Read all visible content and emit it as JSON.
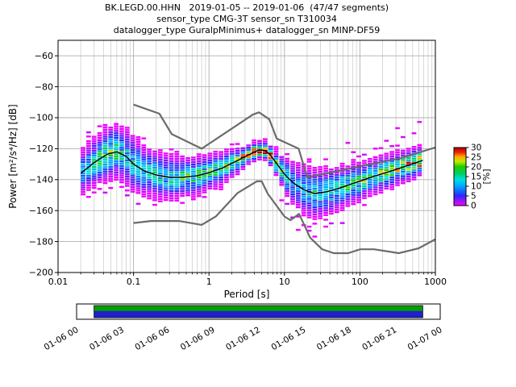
{
  "chart_data": {
    "type": "heatmap",
    "title": "BK.LEGD.00.HHN   2019-01-05 -- 2019-01-06  (47/47 segments)",
    "subtitles": [
      "sensor_type CMG-3T sensor_sn T310034",
      "datalogger_type GuralpMinimus+ datalogger_sn MINP-DF59"
    ],
    "xlabel": "Period [s]",
    "ylabel": "Power [m²/s⁴/Hz] [dB]",
    "x_scale": "log",
    "xlim": [
      0.01,
      1000
    ],
    "ylim": [
      -200,
      -50
    ],
    "grid": true,
    "xtick_values": [
      0.01,
      0.1,
      1,
      10,
      100,
      1000
    ],
    "xtick_labels": [
      "0.01",
      "0.1",
      "1",
      "10",
      "100",
      "1000"
    ],
    "ytick_values": [
      -60,
      -80,
      -100,
      -120,
      -140,
      -160,
      -180,
      -200
    ],
    "ytick_labels": [
      "−60",
      "−80",
      "−100",
      "−120",
      "−140",
      "−160",
      "−180",
      "−200"
    ],
    "colorbar": {
      "label": "[%]",
      "vmin": 0,
      "vmax": 30,
      "tick_values": [
        0,
        5,
        10,
        15,
        20,
        25,
        30
      ],
      "tick_labels": [
        "0",
        "5",
        "10",
        "15",
        "20",
        "25",
        "30"
      ],
      "stops": [
        [
          0.0,
          "#ff00ff"
        ],
        [
          0.17,
          "#2a2aff"
        ],
        [
          0.34,
          "#00aaff"
        ],
        [
          0.45,
          "#00e0e0"
        ],
        [
          0.55,
          "#00d060"
        ],
        [
          0.67,
          "#22cc00"
        ],
        [
          0.76,
          "#bbee00"
        ],
        [
          0.84,
          "#ffaa00"
        ],
        [
          0.92,
          "#ee2200"
        ],
        [
          1.0,
          "#aa0000"
        ]
      ]
    },
    "noise_models": {
      "color": "#6b6b6b",
      "nhnm": [
        [
          0.1,
          -91.5
        ],
        [
          0.22,
          -97.4
        ],
        [
          0.32,
          -110.5
        ],
        [
          0.8,
          -120.0
        ],
        [
          3.8,
          -98.0
        ],
        [
          4.6,
          -96.5
        ],
        [
          6.3,
          -101.0
        ],
        [
          7.9,
          -113.5
        ],
        [
          15.4,
          -120.0
        ],
        [
          20.0,
          -138.5
        ],
        [
          354.8,
          -126.0
        ],
        [
          1000,
          -119.2
        ]
      ],
      "nlnm": [
        [
          0.1,
          -168.0
        ],
        [
          0.17,
          -166.7
        ],
        [
          0.4,
          -166.7
        ],
        [
          0.8,
          -169.2
        ],
        [
          1.24,
          -163.7
        ],
        [
          2.4,
          -148.6
        ],
        [
          4.3,
          -141.1
        ],
        [
          5.0,
          -141.1
        ],
        [
          6.0,
          -149.0
        ],
        [
          10.0,
          -163.8
        ],
        [
          12.0,
          -166.2
        ],
        [
          15.6,
          -162.1
        ],
        [
          21.9,
          -177.5
        ],
        [
          31.6,
          -185.0
        ],
        [
          45.0,
          -187.5
        ],
        [
          70.0,
          -187.5
        ],
        [
          101.0,
          -185.0
        ],
        [
          154.0,
          -185.0
        ],
        [
          328.0,
          -187.5
        ],
        [
          600.0,
          -184.4
        ],
        [
          1000,
          -178.5
        ]
      ]
    },
    "psd": {
      "period_range": [
        0.02,
        680
      ],
      "bins": 62,
      "mean": [
        [
          0.02,
          -136
        ],
        [
          0.03,
          -129
        ],
        [
          0.045,
          -123.5
        ],
        [
          0.06,
          -122
        ],
        [
          0.08,
          -125
        ],
        [
          0.1,
          -130
        ],
        [
          0.14,
          -134.5
        ],
        [
          0.2,
          -137
        ],
        [
          0.3,
          -138.5
        ],
        [
          0.45,
          -138.5
        ],
        [
          0.7,
          -137.5
        ],
        [
          1.0,
          -135.5
        ],
        [
          1.5,
          -132.5
        ],
        [
          2.2,
          -128.5
        ],
        [
          3.2,
          -124.5
        ],
        [
          4.5,
          -121
        ],
        [
          5.5,
          -121
        ],
        [
          6.5,
          -124
        ],
        [
          8.0,
          -130
        ],
        [
          10,
          -136.5
        ],
        [
          13,
          -142
        ],
        [
          18,
          -146.5
        ],
        [
          25,
          -149
        ],
        [
          35,
          -148
        ],
        [
          50,
          -146
        ],
        [
          70,
          -143.5
        ],
        [
          100,
          -141
        ],
        [
          150,
          -138
        ],
        [
          220,
          -135.5
        ],
        [
          320,
          -133
        ],
        [
          450,
          -130.5
        ],
        [
          600,
          -128.5
        ],
        [
          680,
          -127.5
        ]
      ],
      "sigma": [
        [
          0.02,
          5.5
        ],
        [
          0.05,
          6.5
        ],
        [
          0.1,
          7
        ],
        [
          0.2,
          6
        ],
        [
          0.45,
          5
        ],
        [
          1,
          4.5
        ],
        [
          2,
          3.5
        ],
        [
          3.5,
          2.2
        ],
        [
          5.5,
          2
        ],
        [
          8,
          3
        ],
        [
          12,
          5
        ],
        [
          20,
          6.5
        ],
        [
          35,
          6
        ],
        [
          70,
          5
        ],
        [
          150,
          4.5
        ],
        [
          400,
          4
        ],
        [
          680,
          3.5
        ]
      ],
      "peak_pct": [
        [
          0.02,
          10
        ],
        [
          0.045,
          16
        ],
        [
          0.08,
          12
        ],
        [
          0.15,
          10
        ],
        [
          0.3,
          13
        ],
        [
          0.6,
          15
        ],
        [
          1.2,
          14
        ],
        [
          2.5,
          18
        ],
        [
          4,
          28
        ],
        [
          5.5,
          32
        ],
        [
          7,
          24
        ],
        [
          10,
          14
        ],
        [
          15,
          10
        ],
        [
          25,
          11
        ],
        [
          45,
          13
        ],
        [
          90,
          15
        ],
        [
          180,
          16
        ],
        [
          350,
          18
        ],
        [
          550,
          24
        ],
        [
          680,
          28
        ]
      ]
    },
    "timeline": {
      "tick_labels": [
        "01-06 00",
        "01-06 03",
        "01-06 06",
        "01-06 09",
        "01-06 12",
        "01-06 15",
        "01-06 18",
        "01-06 21",
        "01-07 00"
      ],
      "fill_range_frac": [
        0.048,
        0.952
      ],
      "top_color": "#00a000",
      "bottom_color": "#2020cc"
    }
  }
}
